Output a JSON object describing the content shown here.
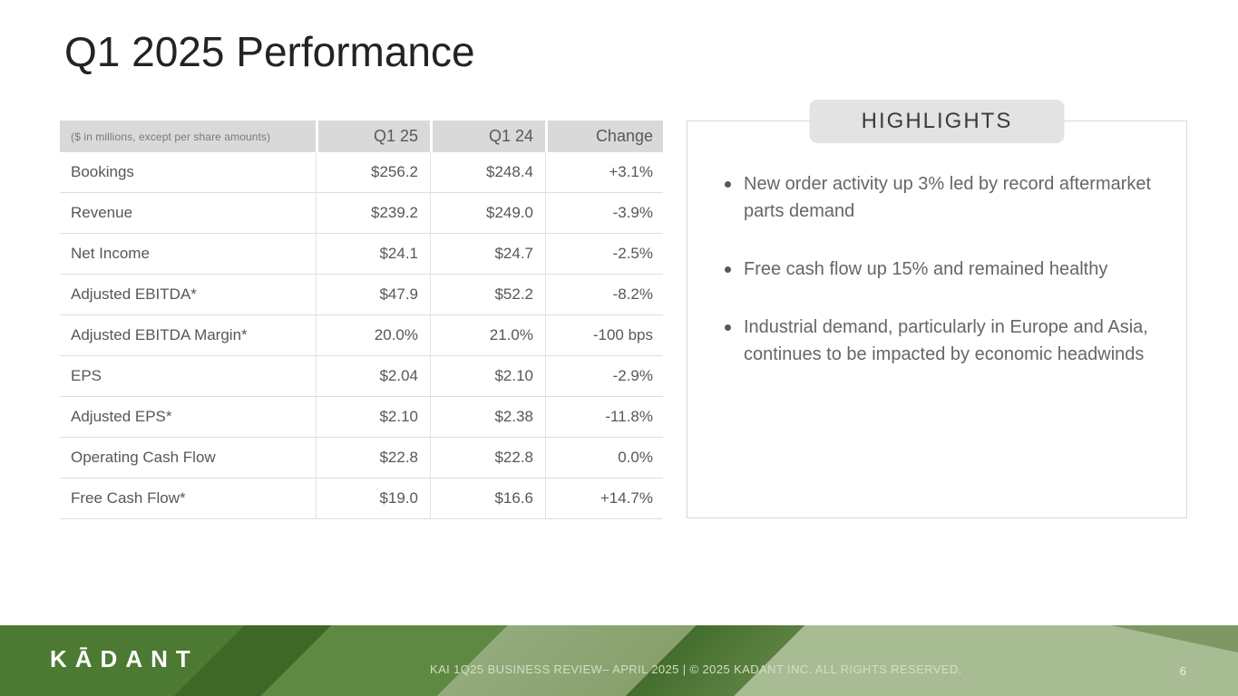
{
  "slide": {
    "title": "Q1 2025 Performance"
  },
  "table": {
    "note": "($ in millions, except per share amounts)",
    "columns": [
      "Q1 25",
      "Q1 24",
      "Change"
    ],
    "rows": [
      {
        "label": "Bookings",
        "q1_25": "$256.2",
        "q1_24": "$248.4",
        "change": "+3.1%"
      },
      {
        "label": "Revenue",
        "q1_25": "$239.2",
        "q1_24": "$249.0",
        "change": "-3.9%"
      },
      {
        "label": "Net Income",
        "q1_25": "$24.1",
        "q1_24": "$24.7",
        "change": "-2.5%"
      },
      {
        "label": "Adjusted EBITDA*",
        "q1_25": "$47.9",
        "q1_24": "$52.2",
        "change": "-8.2%"
      },
      {
        "label": "Adjusted EBITDA Margin*",
        "q1_25": "20.0%",
        "q1_24": "21.0%",
        "change": "-100 bps"
      },
      {
        "label": "EPS",
        "q1_25": "$2.04",
        "q1_24": "$2.10",
        "change": "-2.9%"
      },
      {
        "label": "Adjusted EPS*",
        "q1_25": "$2.10",
        "q1_24": "$2.38",
        "change": "-11.8%"
      },
      {
        "label": "Operating Cash Flow",
        "q1_25": "$22.8",
        "q1_24": "$22.8",
        "change": "0.0%"
      },
      {
        "label": "Free Cash Flow*",
        "q1_25": "$19.0",
        "q1_24": "$16.6",
        "change": "+14.7%"
      }
    ]
  },
  "highlights": {
    "title": "HIGHLIGHTS",
    "bullets": [
      "New order activity up 3% led by record aftermarket parts demand",
      "Free cash flow up 15% and remained healthy",
      "Industrial demand, particularly in Europe and Asia, continues to be impacted by economic headwinds"
    ]
  },
  "footer": {
    "logo": "KĀDANT",
    "text": "KAI 1Q25 BUSINESS REVIEW– APRIL 2025  |  © 2025 KADANT INC. ALL RIGHTS RESERVED.",
    "page_number": "6"
  },
  "colors": {
    "table_header_bg": "#d9d9d9",
    "highlights_tab_bg": "#e3e3e3",
    "body_text": "#595959",
    "footer_green_dark": "#3d6827",
    "footer_green_brand": "#4c7a33",
    "footer_green_medium": "#5e8943",
    "footer_sage_light": "#a8bc93"
  }
}
